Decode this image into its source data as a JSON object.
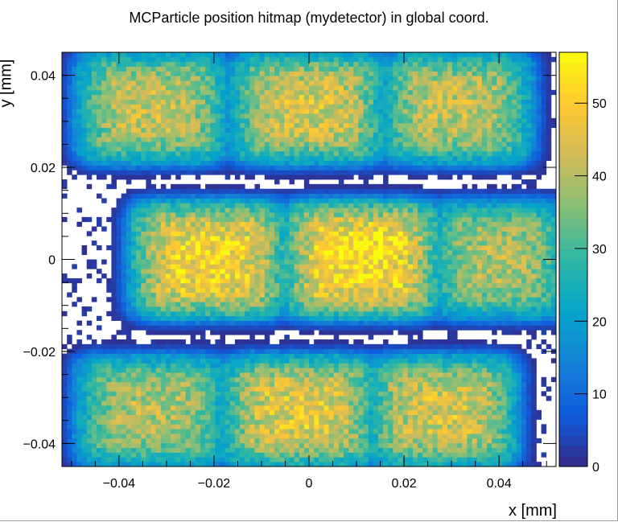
{
  "chart_data": {
    "type": "heatmap",
    "title": "MCParticle position hitmap (mydetector) in global coord.",
    "xlabel": "x [mm]",
    "ylabel": "y [mm]",
    "xlim": [
      -0.052,
      0.052
    ],
    "ylim": [
      -0.045,
      0.045
    ],
    "x_ticks": [
      -0.04,
      -0.02,
      0,
      0.02,
      0.04
    ],
    "x_tick_labels": [
      "−0.04",
      "−0.02",
      "0",
      "0.02",
      "0.04"
    ],
    "y_ticks": [
      -0.04,
      -0.02,
      0,
      0.02,
      0.04
    ],
    "y_tick_labels": [
      "−0.04",
      "−0.02",
      "0",
      "0.02",
      "0.04"
    ],
    "zlim": [
      0,
      57
    ],
    "z_ticks": [
      0,
      10,
      20,
      30,
      40,
      50
    ],
    "z_tick_labels": [
      "0",
      "10",
      "20",
      "30",
      "40",
      "50"
    ],
    "palette": [
      "#352a87",
      "#0f5cdd",
      "#1481d6",
      "#06a4ca",
      "#2eb7a4",
      "#87bf77",
      "#d1bb59",
      "#fec832",
      "#f9fb0e"
    ],
    "bins": {
      "nx": 100,
      "ny": 88
    },
    "pixel_clusters": [
      {
        "cx": -0.033,
        "cy": 0.033,
        "w": 0.029,
        "h": 0.022,
        "peak": 42
      },
      {
        "cx": 0.0,
        "cy": 0.033,
        "w": 0.03,
        "h": 0.022,
        "peak": 44
      },
      {
        "cx": 0.031,
        "cy": 0.033,
        "w": 0.029,
        "h": 0.022,
        "peak": 42
      },
      {
        "cx": -0.021,
        "cy": 0.0,
        "w": 0.03,
        "h": 0.023,
        "peak": 50
      },
      {
        "cx": 0.011,
        "cy": 0.0,
        "w": 0.03,
        "h": 0.023,
        "peak": 52
      },
      {
        "cx": 0.04,
        "cy": 0.0,
        "w": 0.026,
        "h": 0.023,
        "peak": 40
      },
      {
        "cx": -0.033,
        "cy": -0.033,
        "w": 0.029,
        "h": 0.022,
        "peak": 40
      },
      {
        "cx": -0.002,
        "cy": -0.033,
        "w": 0.03,
        "h": 0.022,
        "peak": 46
      },
      {
        "cx": 0.028,
        "cy": -0.033,
        "w": 0.029,
        "h": 0.022,
        "peak": 44
      }
    ],
    "grid": false,
    "legend": "color-scale right"
  }
}
